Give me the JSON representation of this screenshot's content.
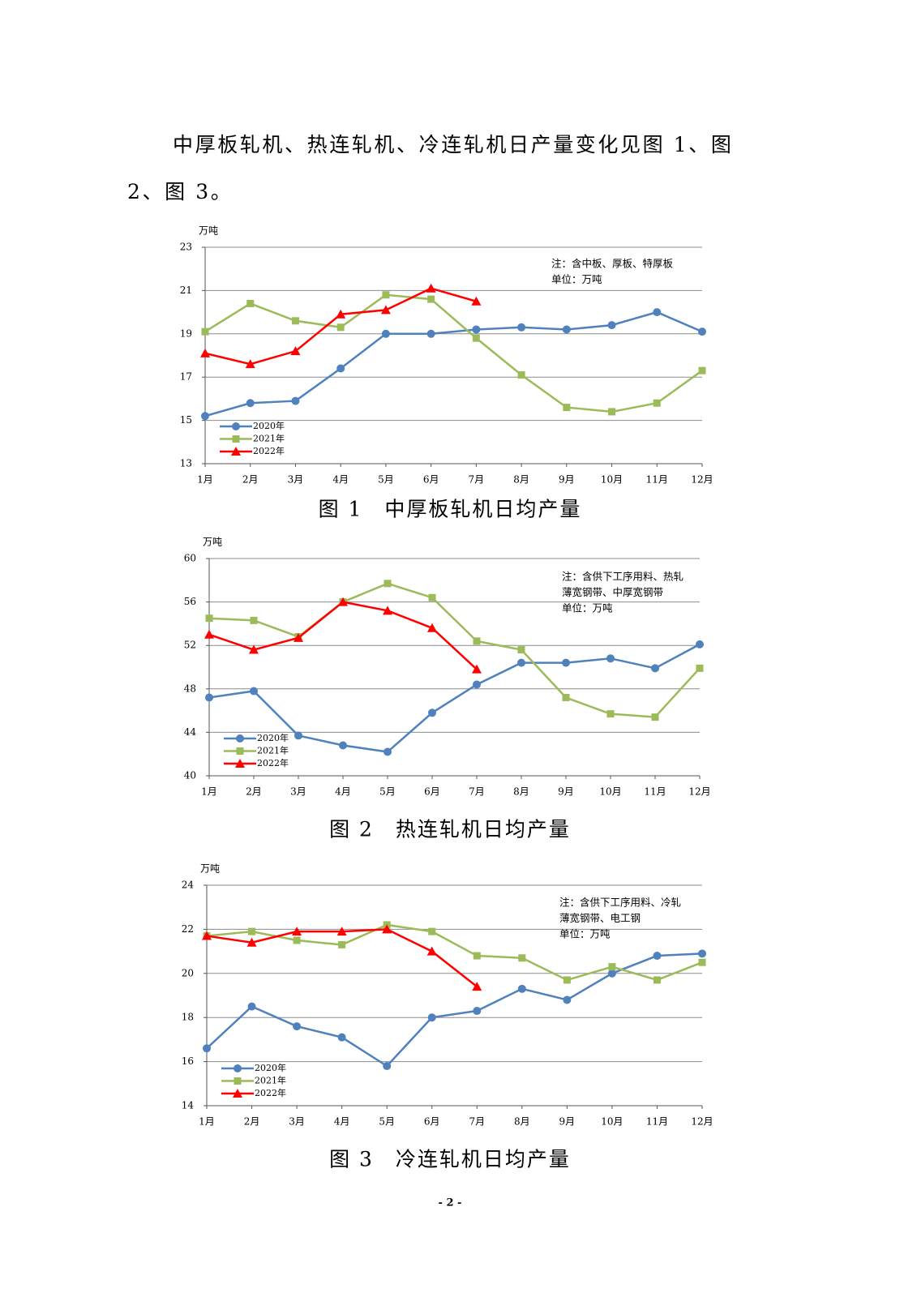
{
  "paragraph": "中厚板轧机、热连轧机、冷连轧机日产量变化见图 1、图 2、图 3。",
  "page_number": "- 2 -",
  "chart_data": [
    {
      "type": "line",
      "caption": "图 1　中厚板轧机日均产量",
      "y_label": "万吨",
      "notes": [
        "注：含中板、厚板、特厚板",
        "单位：万吨"
      ],
      "categories": [
        "1月",
        "2月",
        "3月",
        "4月",
        "5月",
        "6月",
        "7月",
        "8月",
        "9月",
        "10月",
        "11月",
        "12月"
      ],
      "ylim": [
        13,
        23
      ],
      "yticks": [
        13,
        15,
        17,
        19,
        21,
        23
      ],
      "grid": true,
      "legend": "lower left",
      "series": [
        {
          "name": "2020年",
          "color": "#4f81bd",
          "marker": "circle",
          "values": [
            15.2,
            15.8,
            15.9,
            17.4,
            19.0,
            19.0,
            19.2,
            19.3,
            19.2,
            19.4,
            20.0,
            19.1
          ]
        },
        {
          "name": "2021年",
          "color": "#9bbb59",
          "marker": "square",
          "values": [
            19.1,
            20.4,
            19.6,
            19.3,
            20.8,
            20.6,
            18.8,
            17.1,
            15.6,
            15.4,
            15.8,
            17.3
          ]
        },
        {
          "name": "2022年",
          "color": "#ff0000",
          "marker": "triangle",
          "values": [
            18.1,
            17.6,
            18.2,
            19.9,
            20.1,
            21.1,
            20.5,
            null,
            null,
            null,
            null,
            null
          ]
        }
      ]
    },
    {
      "type": "line",
      "caption": "图 2　热连轧机日均产量",
      "y_label": "万吨",
      "notes": [
        "注：含供下工序用料、热轧",
        "薄宽钢带、中厚宽钢带",
        "单位：万吨"
      ],
      "categories": [
        "1月",
        "2月",
        "3月",
        "4月",
        "5月",
        "6月",
        "7月",
        "8月",
        "9月",
        "10月",
        "11月",
        "12月"
      ],
      "ylim": [
        40,
        60
      ],
      "yticks": [
        40,
        44,
        48,
        52,
        56,
        60
      ],
      "grid": true,
      "legend": "lower left",
      "series": [
        {
          "name": "2020年",
          "color": "#4f81bd",
          "marker": "circle",
          "values": [
            47.2,
            47.8,
            43.7,
            42.8,
            42.2,
            45.8,
            48.4,
            50.4,
            50.4,
            50.8,
            49.9,
            52.1
          ]
        },
        {
          "name": "2021年",
          "color": "#9bbb59",
          "marker": "square",
          "values": [
            54.5,
            54.3,
            52.8,
            56.0,
            57.7,
            56.4,
            52.4,
            51.6,
            47.2,
            45.7,
            45.4,
            49.9
          ]
        },
        {
          "name": "2022年",
          "color": "#ff0000",
          "marker": "triangle",
          "values": [
            53.0,
            51.6,
            52.7,
            56.0,
            55.2,
            53.6,
            49.8,
            null,
            null,
            null,
            null,
            null
          ]
        }
      ]
    },
    {
      "type": "line",
      "caption": "图 3　冷连轧机日均产量",
      "y_label": "万吨",
      "notes": [
        "注：含供下工序用料、冷轧",
        "薄宽钢带、电工钢",
        "单位：万吨"
      ],
      "categories": [
        "1月",
        "2月",
        "3月",
        "4月",
        "5月",
        "6月",
        "7月",
        "8月",
        "9月",
        "10月",
        "11月",
        "12月"
      ],
      "ylim": [
        14,
        24
      ],
      "yticks": [
        14,
        16,
        18,
        20,
        22,
        24
      ],
      "grid": true,
      "legend": "lower left",
      "series": [
        {
          "name": "2020年",
          "color": "#4f81bd",
          "marker": "circle",
          "values": [
            16.6,
            18.5,
            17.6,
            17.1,
            15.8,
            18.0,
            18.3,
            19.3,
            18.8,
            20.0,
            20.8,
            20.9
          ]
        },
        {
          "name": "2021年",
          "color": "#9bbb59",
          "marker": "square",
          "values": [
            21.7,
            21.9,
            21.5,
            21.3,
            22.2,
            21.9,
            20.8,
            20.7,
            19.7,
            20.3,
            19.7,
            20.5
          ]
        },
        {
          "name": "2022年",
          "color": "#ff0000",
          "marker": "triangle",
          "values": [
            21.7,
            21.4,
            21.9,
            21.9,
            22.0,
            21.0,
            19.4,
            null,
            null,
            null,
            null,
            null
          ]
        }
      ]
    }
  ]
}
